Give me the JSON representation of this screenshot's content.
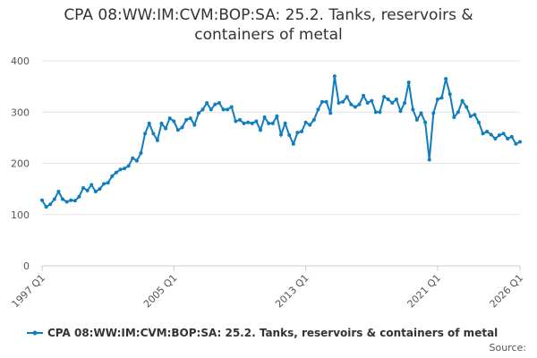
{
  "chart_data": {
    "type": "line",
    "title": "CPA 08:WW:IM:CVM:BOP:SA: 25.2. Tanks, reservoirs & containers of metal",
    "source": "Source:",
    "categories": [
      "1997 Q1",
      null,
      null,
      null,
      null,
      null,
      null,
      null,
      null,
      null,
      null,
      null,
      null,
      null,
      null,
      null,
      null,
      null,
      null,
      null,
      null,
      null,
      null,
      null,
      null,
      null,
      null,
      null,
      null,
      null,
      null,
      null,
      "2005 Q1",
      null,
      null,
      null,
      null,
      null,
      null,
      null,
      null,
      null,
      null,
      null,
      null,
      null,
      null,
      null,
      null,
      null,
      null,
      null,
      null,
      null,
      null,
      null,
      null,
      null,
      null,
      null,
      null,
      null,
      null,
      null,
      "2013 Q1",
      null,
      null,
      null,
      null,
      null,
      null,
      null,
      null,
      null,
      null,
      null,
      null,
      null,
      null,
      null,
      null,
      null,
      null,
      null,
      null,
      null,
      null,
      null,
      null,
      null,
      null,
      null,
      null,
      null,
      null,
      null,
      "2021 Q1",
      null,
      null,
      null,
      null,
      null,
      null,
      null,
      null,
      null,
      null,
      null,
      null,
      null,
      null,
      null,
      null,
      null,
      null,
      null,
      "2026 Q1"
    ],
    "series": [
      {
        "name": "CPA 08:WW:IM:CVM:BOP:SA: 25.2. Tanks, reservoirs & containers of metal",
        "color": "#0f7dbf",
        "values": [
          128,
          115,
          120,
          130,
          145,
          130,
          125,
          128,
          127,
          135,
          152,
          147,
          158,
          145,
          150,
          160,
          162,
          175,
          182,
          188,
          190,
          195,
          210,
          205,
          220,
          258,
          278,
          258,
          245,
          278,
          268,
          288,
          282,
          265,
          270,
          285,
          288,
          275,
          298,
          305,
          318,
          305,
          315,
          318,
          305,
          305,
          310,
          282,
          285,
          278,
          280,
          278,
          282,
          265,
          290,
          278,
          278,
          292,
          256,
          278,
          255,
          238,
          260,
          262,
          280,
          275,
          285,
          305,
          320,
          320,
          298,
          370,
          318,
          320,
          330,
          315,
          310,
          315,
          332,
          318,
          322,
          300,
          300,
          330,
          325,
          318,
          325,
          302,
          318,
          358,
          305,
          285,
          298,
          280,
          207,
          298,
          325,
          328,
          365,
          335,
          290,
          300,
          322,
          310,
          292,
          295,
          280,
          258,
          262,
          256,
          248,
          255,
          258,
          248,
          252,
          238,
          242
        ]
      }
    ],
    "ylim": [
      0,
      400
    ],
    "yticks": [
      0,
      100,
      200,
      300,
      400
    ],
    "grid": true
  }
}
